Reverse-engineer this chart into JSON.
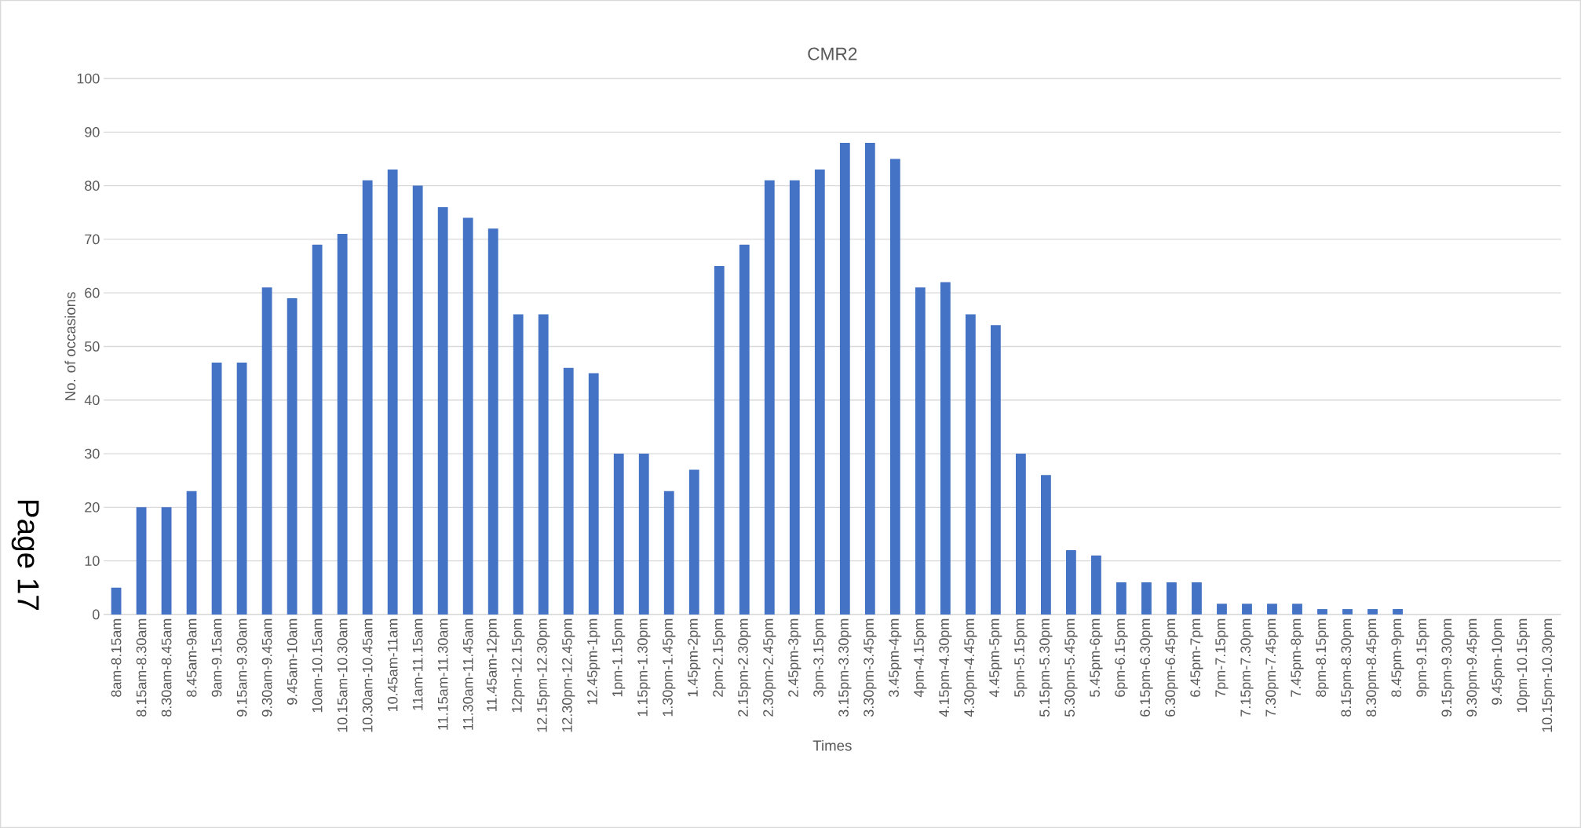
{
  "chart_data": {
    "type": "bar",
    "title": "CMR2",
    "xlabel": "Times",
    "ylabel": "No. of occasions",
    "categories": [
      "8am-8.15am",
      "8.15am-8.30am",
      "8.30am-8.45am",
      "8.45am-9am",
      "9am-9.15am",
      "9.15am-9.30am",
      "9.30am-9.45am",
      "9.45am-10am",
      "10am-10.15am",
      "10.15am-10.30am",
      "10.30am-10.45am",
      "10.45am-11am",
      "11am-11.15am",
      "11.15am-11.30am",
      "11.30am-11.45am",
      "11.45am-12pm",
      "12pm-12.15pm",
      "12.15pm-12.30pm",
      "12.30pm-12.45pm",
      "12.45pm-1pm",
      "1pm-1.15pm",
      "1.15pm-1.30pm",
      "1.30pm-1.45pm",
      "1.45pm-2pm",
      "2pm-2.15pm",
      "2.15pm-2.30pm",
      "2.30pm-2.45pm",
      "2.45pm-3pm",
      "3pm-3.15pm",
      "3.15pm-3.30pm",
      "3.30pm-3.45pm",
      "3.45pm-4pm",
      "4pm-4.15pm",
      "4.15pm-4.30pm",
      "4.30pm-4.45pm",
      "4.45pm-5pm",
      "5pm-5.15pm",
      "5.15pm-5.30pm",
      "5.30pm-5.45pm",
      "5.45pm-6pm",
      "6pm-6.15pm",
      "6.15pm-6.30pm",
      "6.30pm-6.45pm",
      "6.45pm-7pm",
      "7pm-7.15pm",
      "7.15pm-7.30pm",
      "7.30pm-7.45pm",
      "7.45pm-8pm",
      "8pm-8.15pm",
      "8.15pm-8.30pm",
      "8.30pm-8.45pm",
      "8.45pm-9pm",
      "9pm-9.15pm",
      "9.15pm-9.30pm",
      "9.30pm-9.45pm",
      "9.45pm-10pm",
      "10pm-10.15pm",
      "10.15pm-10.30pm"
    ],
    "values": [
      5,
      20,
      20,
      23,
      47,
      47,
      61,
      59,
      69,
      71,
      81,
      83,
      80,
      76,
      74,
      72,
      56,
      56,
      46,
      45,
      30,
      30,
      23,
      27,
      65,
      69,
      81,
      81,
      83,
      88,
      88,
      85,
      61,
      62,
      56,
      54,
      30,
      26,
      12,
      11,
      6,
      6,
      6,
      6,
      2,
      2,
      2,
      2,
      1,
      1,
      1,
      1,
      0,
      0,
      0,
      0,
      0,
      0
    ],
    "color": "#4472c4",
    "ylim": [
      0,
      100
    ],
    "yticks": [
      0,
      10,
      20,
      30,
      40,
      50,
      60,
      70,
      80,
      90,
      100
    ],
    "grid": "y",
    "annotations": [
      "Page 17"
    ]
  }
}
